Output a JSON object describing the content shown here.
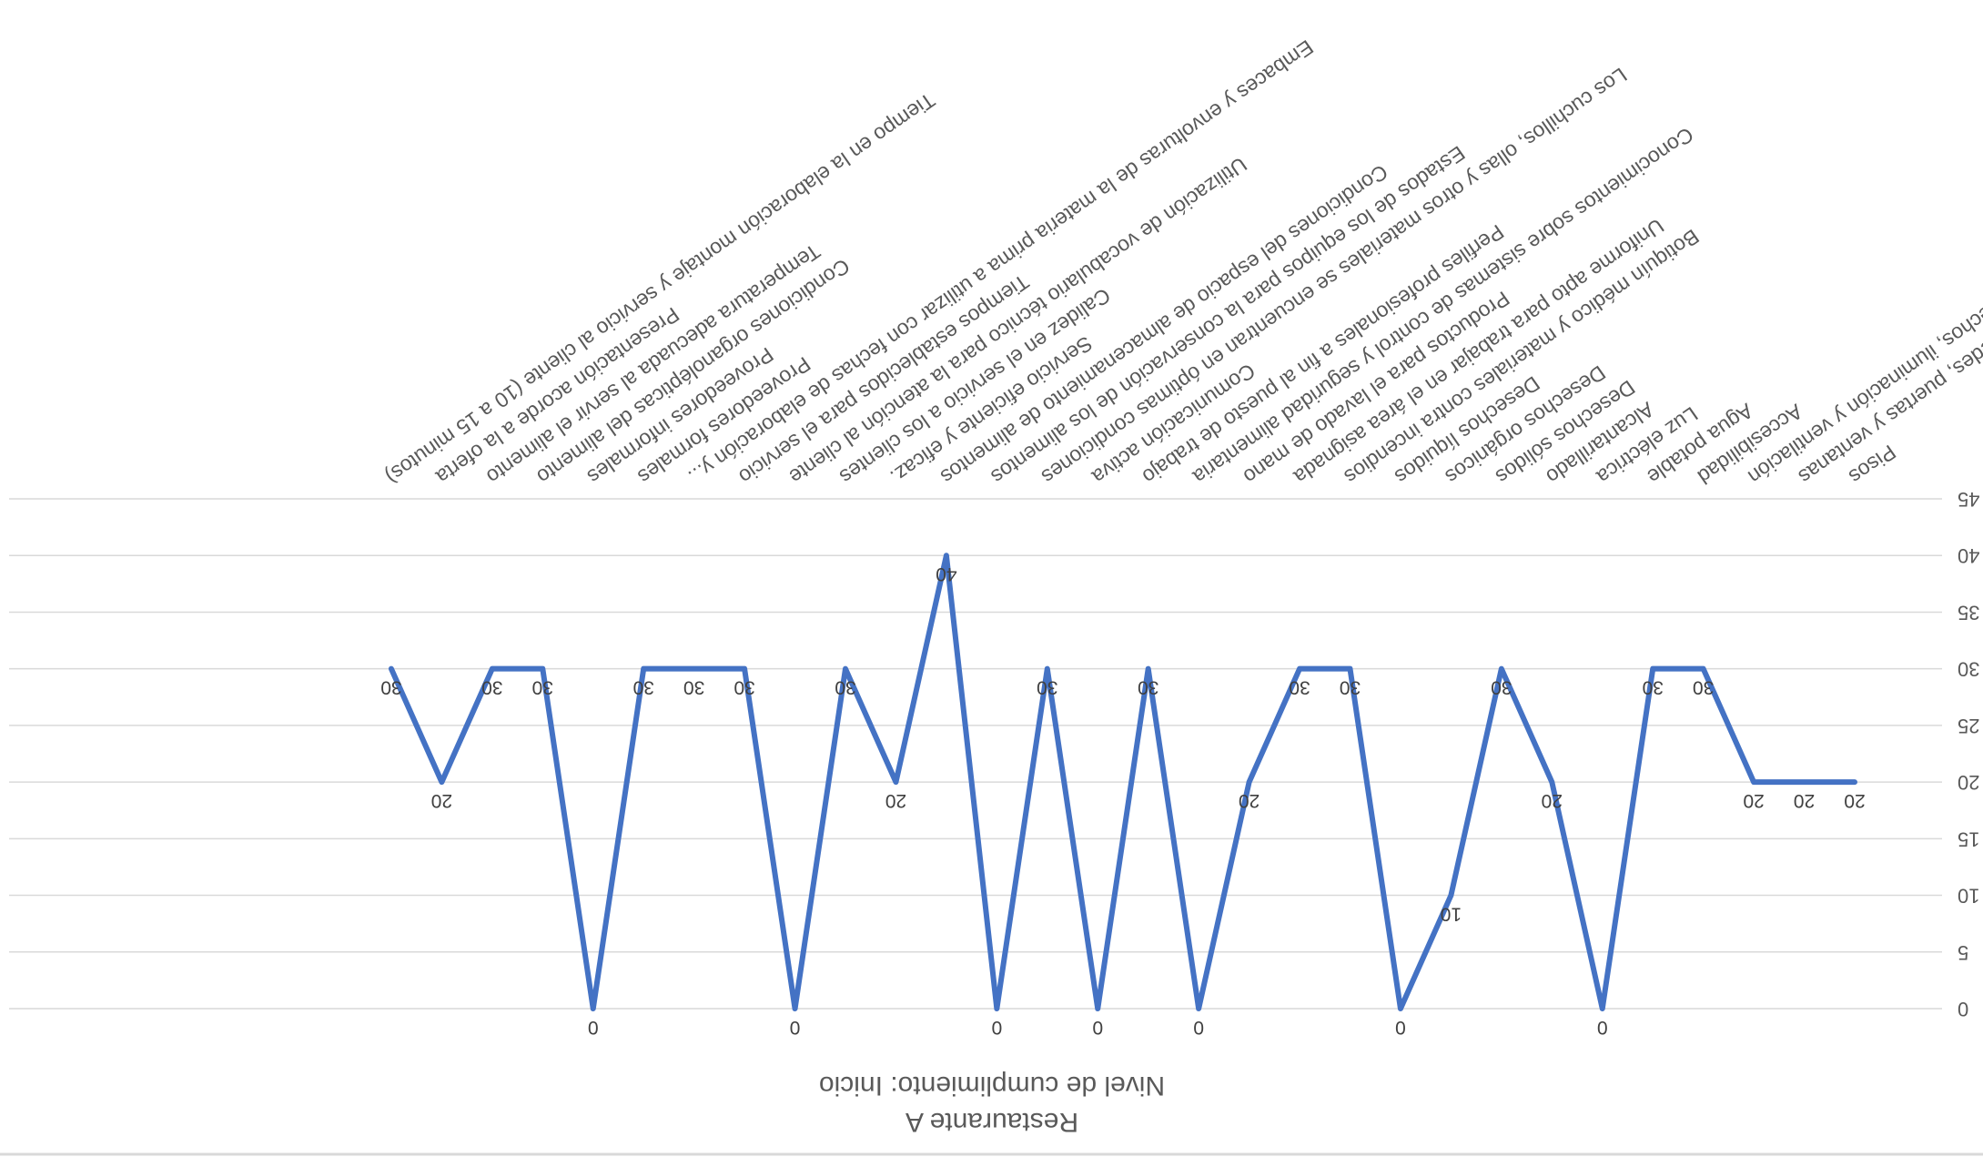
{
  "chart_data": {
    "type": "line",
    "title": "Restaurante A",
    "subtitle": "Nivel de cumplimiento: Inicio",
    "orientation": "rotated-180",
    "ylim": [
      0,
      45
    ],
    "yticks": [
      "0",
      "5",
      "10",
      "15",
      "20",
      "25",
      "30",
      "35",
      "40",
      "45"
    ],
    "grid": true,
    "legend": "none",
    "colors": {
      "series": "#4472c4",
      "grid": "#d9d9d9",
      "text": "#595959"
    },
    "categories": [
      "Pisos",
      "Paredes, puertas y ventanas",
      "Techos, iluminación y ventilación",
      "Accesibilidad",
      "Agua potable",
      "Luz eléctrica",
      "Alcantarillado",
      "Desechos sólidos",
      "Desechos orgánicos",
      "Desechos líquidos",
      "Botiquín médico y materiales contra incendios",
      "Uniforme apto para trabajar en el área asignada",
      "Productos para el lavado de mano",
      "Conocimientos sobre sistemas de control y seguridad alimentaria",
      "Perfiles profesionales a fin al puesto de trabajo",
      "Comunicación activa",
      "Los cuchillos, ollas y otros materiales se encuentran en óptimas condiciones",
      "Estados de los equipos para la conservación de los alimentos",
      "Condiciones del espacio de almacenamiento de alimentos",
      "Servicio eficiente y eficaz.",
      "Calidez en el servicio a los clientes",
      "Utilización de vocabulario técnico para la atención al cliente",
      "Tiempos establecidos para el servicio",
      "Embaces y envolturas de la materia prima a utilizar con fechas de elaboración y...",
      "Proveedores formales",
      "Proveedores informales",
      "Condiciones organolépticas del alimento",
      "Temperatura adecuada al servir el alimento",
      "Presentación acorde a la oferta",
      "Tiempo en la elaboración montaje y servicio al cliente (10 a 15 minutos)"
    ],
    "category_labels_drawn": [
      "Pisos",
      "Paredes, puertas y ventanas",
      "Techos, iluminación y ventilación",
      "Accesibilidad",
      "Agua potable",
      "Luz eléctrica",
      "Alcantarillado",
      "Desechos sólidos",
      "Desechos orgánicos",
      "Desechos líquidos",
      "Botiquín médico y materiales contra incendios",
      "Uniforme apto para trabajar en el área asignada",
      "Productos para el lavado de mano",
      "Conocimientos sobre sistemas de control y seguridad alimentaria",
      "Perfiles profesionales a fin al puesto de trabajo",
      "Comunicación activa",
      "Los cuchillos, ollas y otros materiales se encuentran en óptimas condiciones",
      "Estados de los equipos para la conservación de los alimentos",
      "Condiciones del espacio de almacenamiento de alimentos",
      "Servicio eficiente y eficaz.",
      "Calidez en el servicio a los clientes",
      "Utilización de vocabulario técnico para la atención al cliente",
      "Tiempos establecidos para el servicio",
      "Embaces y envolturas de la materia prima a utilizar con fechas de elaboración y...",
      "Proveedores formales",
      "Proveedores informales",
      "Condiciones organolépticas del alimento",
      "Temperatura adecuada al servir el alimento",
      "Presentación acorde a la oferta",
      "Tiempo en la elaboración montaje y servicio al cliente (10 a 15 minutos)"
    ],
    "series": [
      {
        "values": [
          20,
          20,
          20,
          30,
          30,
          0,
          20,
          30,
          10,
          0,
          30,
          30,
          20,
          0,
          30,
          0,
          30,
          0,
          40,
          20,
          30,
          0,
          30,
          30,
          30,
          0,
          30,
          30,
          20,
          30
        ]
      }
    ]
  }
}
